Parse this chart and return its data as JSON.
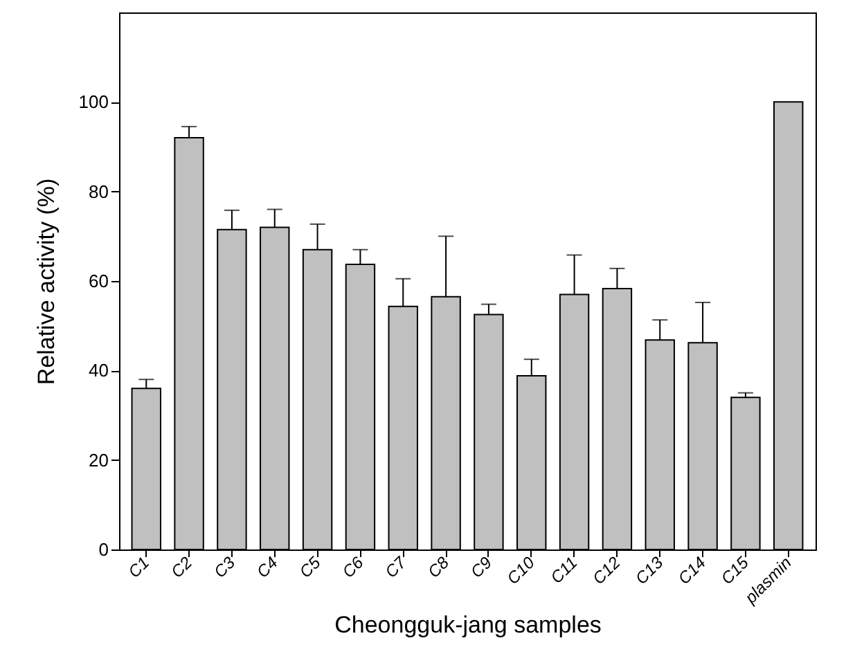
{
  "chart_data": {
    "type": "bar",
    "xlabel": "Cheongguk-jang samples",
    "ylabel": "Relative activity (%)",
    "categories": [
      "C1",
      "C2",
      "C3",
      "C4",
      "C5",
      "C6",
      "C7",
      "C8",
      "C9",
      "C10",
      "C11",
      "C12",
      "C13",
      "C14",
      "C15",
      "plasmin"
    ],
    "values": [
      36,
      92,
      71.5,
      72,
      67,
      63.7,
      54.3,
      56.5,
      52.5,
      38.8,
      57,
      58.3,
      46.8,
      46.2,
      34,
      100
    ],
    "errors": [
      [
        36,
        38
      ],
      [
        92,
        94.5
      ],
      [
        71.5,
        75.8
      ],
      [
        72,
        76
      ],
      [
        67,
        72.7
      ],
      [
        63.7,
        67
      ],
      [
        54.3,
        60.5
      ],
      [
        56.5,
        70
      ],
      [
        52.5,
        54.8
      ],
      [
        38.8,
        42.5
      ],
      [
        57,
        65.8
      ],
      [
        58.3,
        62.8
      ],
      [
        46.8,
        51.3
      ],
      [
        46.2,
        55.2
      ],
      [
        34,
        35
      ],
      null
    ],
    "color": "#c0c0c0",
    "ylim": [
      0,
      120
    ],
    "yticks": [
      0,
      20,
      40,
      60,
      80,
      100
    ],
    "grid": false
  }
}
